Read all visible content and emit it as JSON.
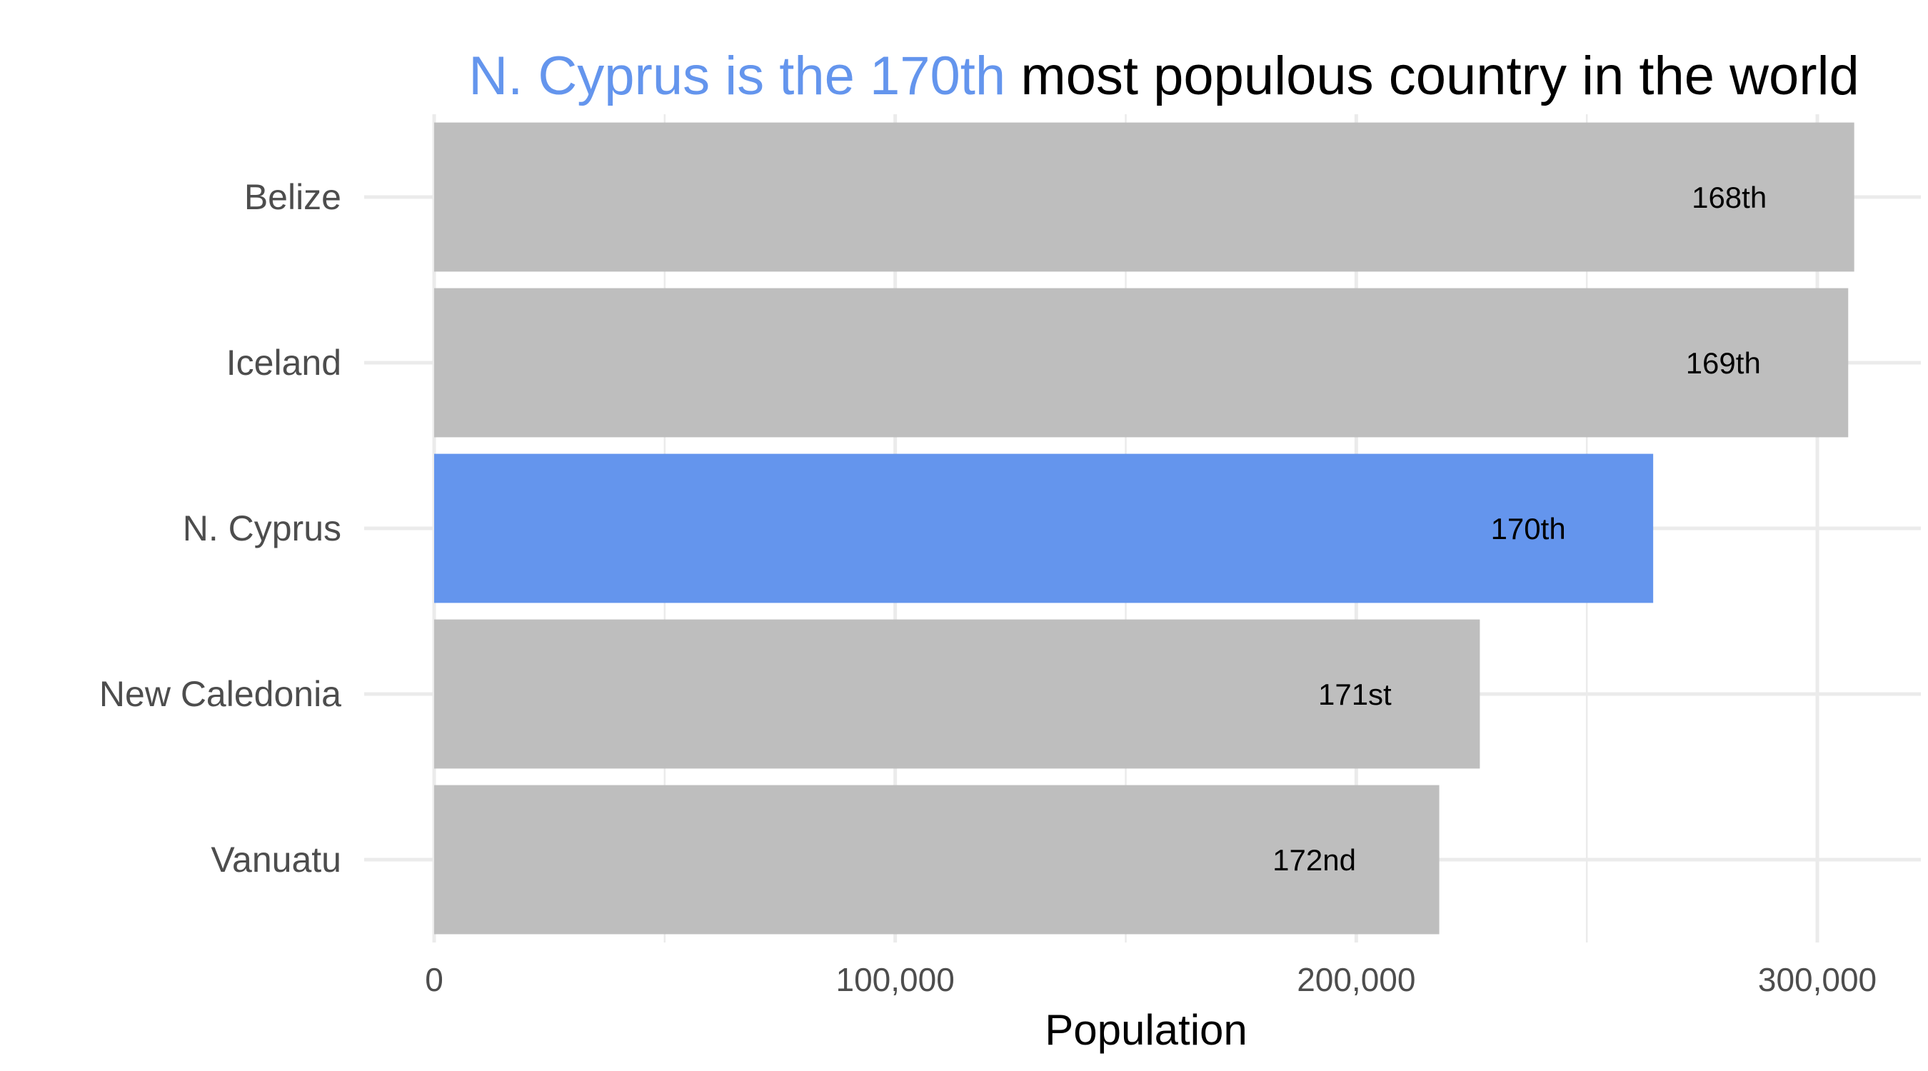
{
  "chart_data": {
    "type": "bar",
    "orientation": "horizontal",
    "title": {
      "highlight": "N. Cyprus is the 170th",
      "rest": " most populous country in the world"
    },
    "categories": [
      "Belize",
      "Iceland",
      "N. Cyprus",
      "New Caledonia",
      "Vanuatu"
    ],
    "values": [
      308000,
      306700,
      264400,
      226800,
      218000
    ],
    "data_labels": [
      "168th",
      "169th",
      "170th",
      "171st",
      "172nd"
    ],
    "highlight_index": 2,
    "xlabel": "Population",
    "ylabel": "",
    "xlim": [
      0,
      310000
    ],
    "x_ticks": [
      0,
      100000,
      200000,
      300000
    ],
    "x_tick_labels": [
      "0",
      "100,000",
      "200,000",
      "300,000"
    ],
    "minor_x_ticks": [
      50000,
      150000,
      250000
    ],
    "grid": true,
    "legend": "none",
    "colors": {
      "bar": "#bebebe",
      "highlight": "#6495ed",
      "grid": "#ebebeb",
      "title": "#000000"
    }
  }
}
